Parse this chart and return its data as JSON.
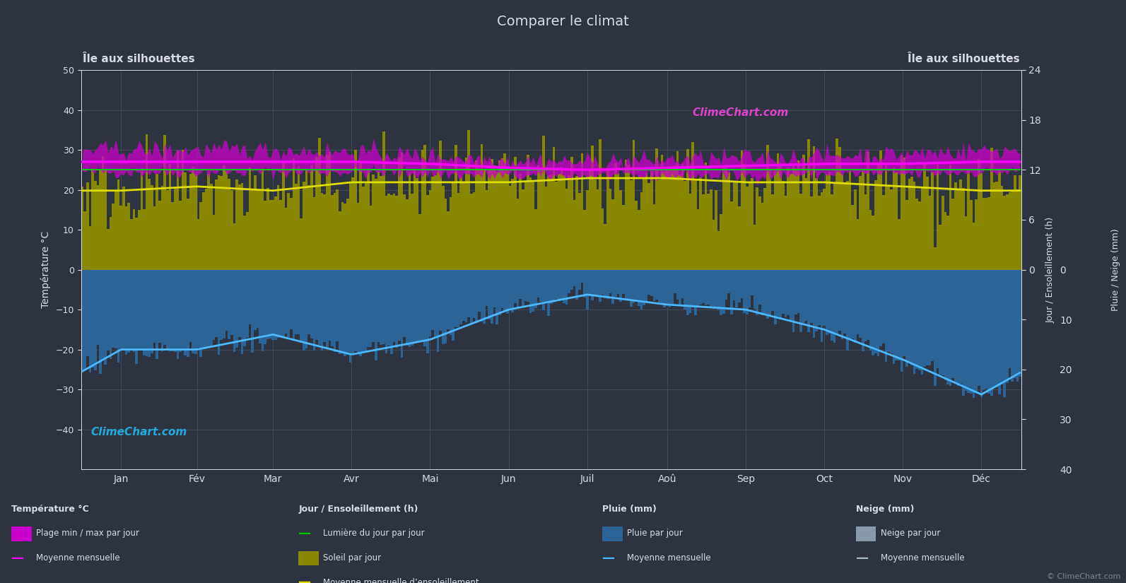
{
  "title": "Comparer le climat",
  "location_left": "Île aux silhouettes",
  "location_right": "Île aux silhouettes",
  "bg_color": "#2d3440",
  "plot_bg_color": "#2d3440",
  "grid_color": "#4a5568",
  "text_color": "#d8dce8",
  "months": [
    "Jan",
    "Fév",
    "Mar",
    "Avr",
    "Mai",
    "Jun",
    "Juil",
    "Aoû",
    "Sep",
    "Oct",
    "Nov",
    "Déc"
  ],
  "temp_ylim": [
    -50,
    50
  ],
  "days_per_month": [
    31,
    28,
    31,
    30,
    31,
    30,
    31,
    31,
    30,
    31,
    30,
    31
  ],
  "temp_min_monthly": [
    24.5,
    24.5,
    24.5,
    24.5,
    24.0,
    23.5,
    23.5,
    23.5,
    23.5,
    24.0,
    24.0,
    24.5
  ],
  "temp_max_monthly": [
    30.0,
    30.0,
    30.0,
    29.5,
    28.5,
    27.5,
    27.0,
    27.5,
    28.0,
    28.5,
    29.0,
    30.0
  ],
  "temp_mean_monthly": [
    27.0,
    27.0,
    27.0,
    27.0,
    26.5,
    25.5,
    25.0,
    25.5,
    26.0,
    26.5,
    26.5,
    27.0
  ],
  "sunshine_hours_monthly": [
    9.5,
    10.0,
    9.5,
    10.5,
    10.5,
    10.5,
    11.0,
    11.0,
    10.5,
    10.5,
    10.0,
    9.5
  ],
  "daylight_hours_monthly": [
    12.0,
    12.0,
    12.0,
    12.0,
    12.0,
    12.0,
    12.0,
    12.0,
    12.0,
    12.0,
    12.0,
    12.0
  ],
  "rain_mm_monthly": [
    16,
    16,
    13,
    17,
    14,
    8,
    5,
    7,
    8,
    12,
    18,
    25
  ],
  "noise_temp_min": 0.8,
  "noise_temp_max": 1.2,
  "noise_sunshine": 2.5,
  "noise_rain": 1.2,
  "colors": {
    "temp_fill": "#cc00cc",
    "temp_mean_line": "#ff00ff",
    "daylight_line": "#00cc00",
    "sunshine_fill": "#888800",
    "sunshine_mean_line": "#dddd00",
    "rain_fill": "#2b6496",
    "rain_mean_line": "#4db8ff",
    "snow_fill": "#8899aa",
    "snow_mean_line": "#aabbcc"
  },
  "legend": {
    "temp_section": "Température °C",
    "temp_range": "Plage min / max par jour",
    "temp_mean": "Moyenne mensuelle",
    "sun_section": "Jour / Ensoleillement (h)",
    "daylight": "Lumière du jour par jour",
    "sunshine": "Soleil par jour",
    "sunshine_mean": "Moyenne mensuelle d’ensoleillement",
    "rain_section": "Pluie (mm)",
    "rain_day": "Pluie par jour",
    "rain_mean": "Moyenne mensuelle",
    "snow_section": "Neige (mm)",
    "snow_day": "Neige par jour",
    "snow_mean": "Moyenne mensuelle"
  }
}
